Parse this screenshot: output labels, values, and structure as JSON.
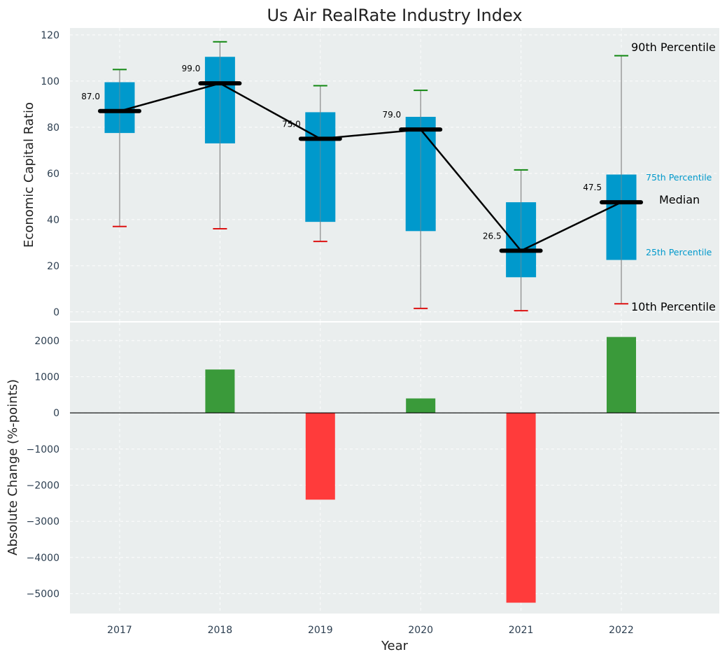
{
  "chart_data": [
    {
      "type": "box",
      "title": "Us Air RealRate Industry Index",
      "ylabel": "Economic Capital Ratio",
      "ylim": [
        -4,
        123
      ],
      "yticks": [
        0,
        20,
        40,
        60,
        80,
        100,
        120
      ],
      "categories": [
        "2017",
        "2018",
        "2019",
        "2020",
        "2021",
        "2022"
      ],
      "p10": [
        37,
        36,
        30.5,
        1.5,
        0.5,
        3.5
      ],
      "p25": [
        77.5,
        73,
        39,
        35,
        15,
        22.5
      ],
      "median": [
        87.0,
        99.0,
        75.0,
        79.0,
        26.5,
        47.5
      ],
      "median_labels": [
        "87.0",
        "99.0",
        "75.0",
        "79.0",
        "26.5",
        "47.5"
      ],
      "p75": [
        99.5,
        110.5,
        86.5,
        84.5,
        47.5,
        59.5
      ],
      "p90": [
        105,
        117,
        98,
        96,
        61.5,
        111
      ],
      "legend": {
        "p90": "90th Percentile",
        "p75": "75th Percentile",
        "median": "Median",
        "p25": "25th Percentile",
        "p10": "10th Percentile"
      }
    },
    {
      "type": "bar",
      "ylabel": "Absolute Change (%-points)",
      "xlabel": "Year",
      "ylim": [
        -5550,
        2500
      ],
      "yticks": [
        -5000,
        -4000,
        -3000,
        -2000,
        -1000,
        0,
        1000,
        2000
      ],
      "ytick_labels": [
        "−5000",
        "−4000",
        "−3000",
        "−2000",
        "−1000",
        "0",
        "1000",
        "2000"
      ],
      "categories": [
        "2017",
        "2018",
        "2019",
        "2020",
        "2021",
        "2022"
      ],
      "values": [
        0,
        1200,
        -2400,
        400,
        -5250,
        2100
      ]
    }
  ],
  "colors": {
    "box": "#0099cc",
    "plot_bg": "#eaeeee",
    "positive": "#3a9a3a",
    "negative": "#ff3b3b",
    "whisker_top": "#118811",
    "whisker_bottom": "#dd1111",
    "median": "#000000"
  }
}
